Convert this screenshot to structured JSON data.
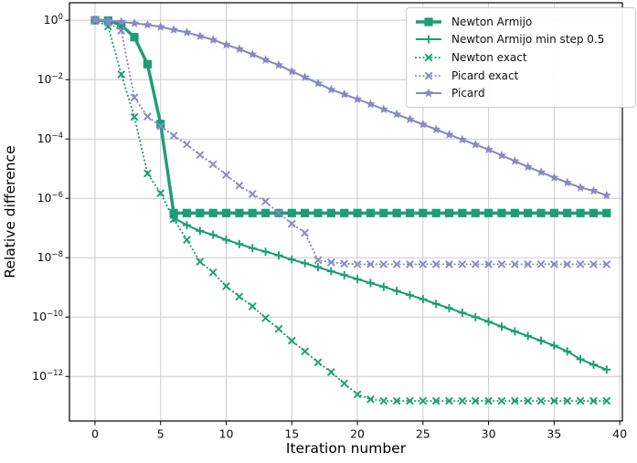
{
  "chart_data": {
    "type": "line",
    "title": "",
    "xlabel": "Iteration number",
    "ylabel": "Relative difference",
    "x_axis": {
      "ticks": [
        0,
        5,
        10,
        15,
        20,
        25,
        30,
        35,
        40
      ],
      "range": [
        -1.95,
        40.2
      ]
    },
    "y_axis": {
      "scale": "log",
      "tick_exponents": [
        0,
        -2,
        -4,
        -6,
        -8,
        -10,
        -12
      ],
      "log_range": [
        -13.5,
        0.59
      ]
    },
    "grid": true,
    "legend_position": "upper right",
    "colors": {
      "newton": "#1b9e77",
      "picard": "#8789c4",
      "grid": "#cccccc",
      "spine": "#000000"
    },
    "x": [
      0,
      1,
      2,
      3,
      4,
      5,
      6,
      7,
      8,
      9,
      10,
      11,
      12,
      13,
      14,
      15,
      16,
      17,
      18,
      19,
      20,
      21,
      22,
      23,
      24,
      25,
      26,
      27,
      28,
      29,
      30,
      31,
      32,
      33,
      34,
      35,
      36,
      37,
      38,
      39
    ],
    "series": [
      {
        "name": "Newton Armijo",
        "color": "#1b9e77",
        "line": "solid",
        "line_width": 3.4,
        "marker": "square",
        "values": [
          1.0,
          0.97,
          0.68,
          0.27,
          0.033,
          0.00032,
          3.2e-07,
          3.2e-07,
          3.2e-07,
          3.2e-07,
          3.2e-07,
          3.2e-07,
          3.2e-07,
          3.2e-07,
          3.2e-07,
          3.2e-07,
          3.2e-07,
          3.2e-07,
          3.2e-07,
          3.2e-07,
          3.2e-07,
          3.2e-07,
          3.2e-07,
          3.2e-07,
          3.2e-07,
          3.2e-07,
          3.2e-07,
          3.2e-07,
          3.2e-07,
          3.2e-07,
          3.2e-07,
          3.2e-07,
          3.2e-07,
          3.2e-07,
          3.2e-07,
          3.2e-07,
          3.2e-07,
          3.2e-07,
          3.2e-07,
          3.2e-07
        ]
      },
      {
        "name": "Newton Armijo min step 0.5",
        "color": "#1b9e77",
        "line": "solid",
        "line_width": 2.1,
        "marker": "plus",
        "values": [
          1.0,
          0.97,
          0.68,
          0.27,
          0.033,
          0.00032,
          2.2e-07,
          1.25e-07,
          8e-08,
          5.9e-08,
          4e-08,
          2.9e-08,
          2.1e-08,
          1.6e-08,
          1.2e-08,
          8.7e-09,
          6.5e-09,
          4.8e-09,
          3.5e-09,
          2.6e-09,
          1.9e-09,
          1.4e-09,
          1.05e-09,
          7.6e-10,
          5.5e-10,
          4e-10,
          2.8e-10,
          2e-10,
          1.4e-10,
          1e-10,
          7e-11,
          4.8e-11,
          3.3e-11,
          2.3e-11,
          1.6e-11,
          1.1e-11,
          7e-12,
          3.8e-12,
          2.5e-12,
          1.7e-12
        ]
      },
      {
        "name": "Newton exact",
        "color": "#1b9e77",
        "line": "dotted",
        "line_width": 2.1,
        "marker": "x",
        "values": [
          1.0,
          0.62,
          0.015,
          0.00055,
          6.9e-06,
          1.5e-06,
          2e-07,
          4e-08,
          7.4e-09,
          3.2e-09,
          1.1e-09,
          4.9e-10,
          2.3e-10,
          9.3e-11,
          4e-11,
          1.6e-11,
          7e-12,
          3e-12,
          1.4e-12,
          5.8e-13,
          2.5e-13,
          1.7e-13,
          1.5e-13,
          1.5e-13,
          1.5e-13,
          1.5e-13,
          1.5e-13,
          1.5e-13,
          1.5e-13,
          1.5e-13,
          1.5e-13,
          1.5e-13,
          1.5e-13,
          1.5e-13,
          1.5e-13,
          1.5e-13,
          1.5e-13,
          1.5e-13,
          1.5e-13,
          1.5e-13
        ]
      },
      {
        "name": "Picard exact",
        "color": "#8789c4",
        "line": "dotted",
        "line_width": 2.1,
        "marker": "x",
        "values": [
          1.0,
          0.82,
          0.45,
          0.0025,
          0.00057,
          0.00027,
          0.00013,
          6.6e-05,
          2.9e-05,
          1.4e-05,
          6.2e-06,
          2.7e-06,
          1.4e-06,
          7.9e-07,
          3.2e-07,
          1.4e-07,
          6.9e-08,
          8.3e-09,
          7e-09,
          6.3e-09,
          6e-09,
          6e-09,
          6e-09,
          6e-09,
          6e-09,
          6e-09,
          6e-09,
          6e-09,
          6e-09,
          6e-09,
          6e-09,
          6e-09,
          6e-09,
          6e-09,
          6e-09,
          6e-09,
          6e-09,
          6e-09,
          6e-09,
          6e-09
        ]
      },
      {
        "name": "Picard",
        "color": "#8789c4",
        "line": "solid",
        "line_width": 2.1,
        "marker": "star",
        "values": [
          1.0,
          0.98,
          0.89,
          0.79,
          0.7,
          0.6,
          0.48,
          0.39,
          0.29,
          0.22,
          0.15,
          0.107,
          0.071,
          0.046,
          0.031,
          0.019,
          0.012,
          0.0075,
          0.0046,
          0.0032,
          0.0022,
          0.0015,
          0.001,
          0.00068,
          0.00046,
          0.00031,
          0.00021,
          0.00014,
          9.5e-05,
          6.5e-05,
          4.4e-05,
          2.8e-05,
          1.8e-05,
          1.15e-05,
          7.6e-06,
          5e-06,
          3.4e-06,
          2.3e-06,
          1.8e-06,
          1.26e-06
        ]
      }
    ]
  }
}
